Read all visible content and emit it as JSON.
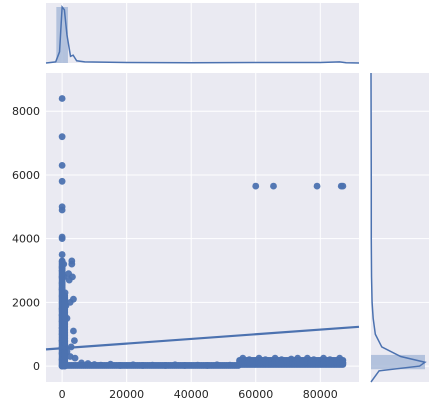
{
  "colors": {
    "panel_background": "#EAEAF2",
    "grid": "#FFFFFF",
    "series": "#4C72B0",
    "series_fill": "#A5B8D7",
    "text": "#262626"
  },
  "chart_data": {
    "type": "scatter",
    "subtype": "jointplot-with-regression",
    "title": "",
    "xlabel": "",
    "ylabel": "",
    "xlim": [
      -5000,
      92000
    ],
    "ylim": [
      -500,
      9200
    ],
    "grid": true,
    "legend": "none",
    "x_ticks": [
      0,
      20000,
      40000,
      60000,
      80000
    ],
    "y_ticks": [
      0,
      2000,
      4000,
      6000,
      8000
    ],
    "x_tick_labels": [
      "0",
      "20000",
      "40000",
      "60000",
      "80000"
    ],
    "y_tick_labels": [
      "0",
      "2000",
      "4000",
      "6000",
      "8000"
    ],
    "series": [
      {
        "points": [
          [
            0,
            8400
          ],
          [
            0,
            7200
          ],
          [
            0,
            6300
          ],
          [
            0,
            5800
          ],
          [
            0,
            5000
          ],
          [
            0,
            4900
          ],
          [
            0,
            4050
          ],
          [
            0,
            4000
          ],
          [
            0,
            3500
          ],
          [
            0,
            3300
          ],
          [
            0,
            3100
          ],
          [
            0,
            3000
          ],
          [
            0,
            2800
          ],
          [
            0,
            2600
          ],
          [
            0,
            2400
          ],
          [
            0,
            2200
          ],
          [
            0,
            2000
          ],
          [
            0,
            1800
          ],
          [
            0,
            1600
          ],
          [
            0,
            1400
          ],
          [
            0,
            1200
          ],
          [
            0,
            1000
          ],
          [
            0,
            800
          ],
          [
            0,
            600
          ],
          [
            0,
            400
          ],
          [
            0,
            200
          ],
          [
            0,
            0
          ],
          [
            500,
            3200
          ],
          [
            600,
            2800
          ],
          [
            900,
            2300
          ],
          [
            1200,
            1900
          ],
          [
            1500,
            1500
          ],
          [
            2000,
            2900
          ],
          [
            2200,
            2700
          ],
          [
            2500,
            2000
          ],
          [
            3000,
            3300
          ],
          [
            3000,
            3200
          ],
          [
            3200,
            2800
          ],
          [
            3500,
            2100
          ],
          [
            3500,
            1100
          ],
          [
            2800,
            600
          ],
          [
            3800,
            800
          ],
          [
            1500,
            450
          ],
          [
            2500,
            300
          ],
          [
            4000,
            250
          ],
          [
            6000,
            100
          ],
          [
            8000,
            80
          ],
          [
            10000,
            50
          ],
          [
            12000,
            30
          ],
          [
            15000,
            60
          ],
          [
            18000,
            20
          ],
          [
            22000,
            40
          ],
          [
            25000,
            20
          ],
          [
            28000,
            30
          ],
          [
            32000,
            20
          ],
          [
            35000,
            40
          ],
          [
            38000,
            20
          ],
          [
            42000,
            30
          ],
          [
            45000,
            20
          ],
          [
            48000,
            40
          ],
          [
            52000,
            30
          ],
          [
            55000,
            150
          ],
          [
            56000,
            250
          ],
          [
            57000,
            100
          ],
          [
            58000,
            200
          ],
          [
            59000,
            80
          ],
          [
            60000,
            150
          ],
          [
            61000,
            250
          ],
          [
            62000,
            120
          ],
          [
            63000,
            200
          ],
          [
            64000,
            100
          ],
          [
            65000,
            150
          ],
          [
            66000,
            250
          ],
          [
            67000,
            80
          ],
          [
            68000,
            200
          ],
          [
            69000,
            120
          ],
          [
            70000,
            150
          ],
          [
            71000,
            220
          ],
          [
            72000,
            100
          ],
          [
            73000,
            250
          ],
          [
            74000,
            80
          ],
          [
            75000,
            150
          ],
          [
            76000,
            250
          ],
          [
            77000,
            120
          ],
          [
            78000,
            200
          ],
          [
            79000,
            100
          ],
          [
            80000,
            150
          ],
          [
            81000,
            250
          ],
          [
            82000,
            80
          ],
          [
            83000,
            200
          ],
          [
            84000,
            120
          ],
          [
            85000,
            150
          ],
          [
            86000,
            250
          ],
          [
            87000,
            100
          ],
          [
            60000,
            5650
          ],
          [
            65500,
            5650
          ],
          [
            79000,
            5650
          ],
          [
            86500,
            5650
          ],
          [
            87000,
            5650
          ]
        ]
      }
    ],
    "regression": {
      "intercept": 560,
      "slope": 0.0073
    },
    "x_distribution": [
      [
        -5000,
        0
      ],
      [
        -2000,
        0.02
      ],
      [
        -800,
        0.2
      ],
      [
        0,
        1.0
      ],
      [
        700,
        0.95
      ],
      [
        1500,
        0.5
      ],
      [
        2600,
        0.12
      ],
      [
        3400,
        0.14
      ],
      [
        4500,
        0.04
      ],
      [
        7000,
        0.02
      ],
      [
        12000,
        0.015
      ],
      [
        20000,
        0.01
      ],
      [
        40000,
        0.005
      ],
      [
        60000,
        0.008
      ],
      [
        80000,
        0.01
      ],
      [
        86000,
        0.02
      ],
      [
        88000,
        0.005
      ],
      [
        92000,
        0
      ]
    ],
    "y_distribution": [
      [
        -500,
        0
      ],
      [
        -150,
        0.15
      ],
      [
        0,
        0.9
      ],
      [
        120,
        1.0
      ],
      [
        300,
        0.55
      ],
      [
        600,
        0.2
      ],
      [
        1000,
        0.08
      ],
      [
        1500,
        0.04
      ],
      [
        2000,
        0.02
      ],
      [
        2800,
        0.01
      ],
      [
        4000,
        0.005
      ],
      [
        5700,
        0.005
      ],
      [
        9200,
        0
      ]
    ]
  }
}
